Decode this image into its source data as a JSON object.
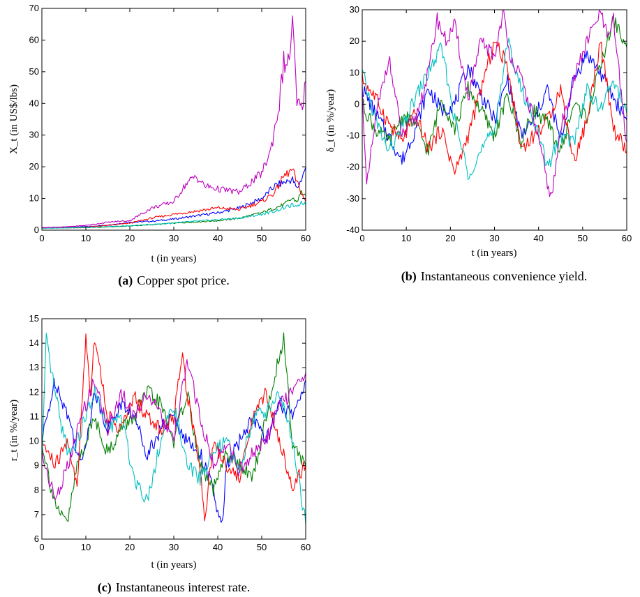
{
  "colors": {
    "blue": "#0000ff",
    "green": "#007f00",
    "red": "#ff0000",
    "cyan": "#00bfbf",
    "magenta": "#bf00bf"
  },
  "chart_data": [
    {
      "id": "a",
      "type": "line",
      "caption_tag": "(a)",
      "caption_text": "Copper spot price.",
      "xlabel": "t (in years)",
      "ylabel": "X_t (in US$/lbs)",
      "xlim": [
        0,
        60
      ],
      "ylim": [
        0,
        70
      ],
      "xticks": [
        0,
        10,
        20,
        30,
        40,
        50,
        60
      ],
      "yticks": [
        0,
        10,
        20,
        30,
        40,
        50,
        60,
        70
      ],
      "grid": false,
      "series": [
        {
          "color": "blue",
          "x": [
            0,
            5,
            10,
            15,
            20,
            25,
            30,
            35,
            40,
            45,
            50,
            53,
            55,
            57,
            58,
            59,
            60
          ],
          "y": [
            0.8,
            0.9,
            1.1,
            1.6,
            2.5,
            2.8,
            3.5,
            4.5,
            5.5,
            7,
            10,
            14,
            15,
            16,
            13,
            16,
            20
          ]
        },
        {
          "color": "green",
          "x": [
            0,
            5,
            10,
            15,
            20,
            25,
            30,
            35,
            40,
            45,
            50,
            53,
            55,
            57,
            58,
            59,
            60
          ],
          "y": [
            0.6,
            0.7,
            0.8,
            1.0,
            1.3,
            1.7,
            2.2,
            2.6,
            3.0,
            3.8,
            5.5,
            7,
            8,
            10,
            9,
            12,
            11
          ]
        },
        {
          "color": "red",
          "x": [
            0,
            5,
            10,
            15,
            20,
            25,
            30,
            35,
            40,
            45,
            50,
            53,
            55,
            57,
            58,
            59,
            60
          ],
          "y": [
            0.7,
            0.8,
            1.0,
            1.5,
            2.2,
            3.8,
            5,
            6,
            7,
            6.5,
            9,
            12,
            17,
            19,
            15,
            12,
            9
          ]
        },
        {
          "color": "cyan",
          "x": [
            0,
            5,
            10,
            15,
            20,
            25,
            30,
            35,
            40,
            45,
            50,
            53,
            55,
            57,
            58,
            59,
            60
          ],
          "y": [
            0.6,
            0.7,
            0.9,
            1.1,
            1.4,
            1.8,
            2.3,
            2.8,
            3.3,
            3.8,
            5,
            6,
            7,
            8,
            7,
            9,
            8
          ]
        },
        {
          "color": "magenta",
          "x": [
            0,
            5,
            10,
            15,
            20,
            25,
            30,
            33,
            35,
            37,
            40,
            45,
            50,
            52,
            54,
            55,
            56,
            57,
            58,
            59,
            60
          ],
          "y": [
            0.8,
            1.0,
            1.5,
            2.5,
            3,
            7,
            9,
            15,
            17,
            14,
            13,
            12,
            18,
            25,
            40,
            53,
            52,
            65,
            40,
            38,
            47
          ]
        }
      ]
    },
    {
      "id": "b",
      "type": "line",
      "caption_tag": "(b)",
      "caption_text": "Instantaneous convenience yield.",
      "xlabel": "t (in years)",
      "ylabel": "δ_t (in %/year)",
      "xlim": [
        0,
        60
      ],
      "ylim": [
        -40,
        30
      ],
      "xticks": [
        0,
        10,
        20,
        30,
        40,
        50,
        60
      ],
      "yticks": [
        -40,
        -30,
        -20,
        -10,
        0,
        10,
        20,
        30
      ],
      "grid": false,
      "series": [
        {
          "color": "blue",
          "x": [
            0,
            3,
            6,
            9,
            12,
            15,
            18,
            21,
            24,
            27,
            30,
            33,
            36,
            39,
            42,
            45,
            48,
            51,
            54,
            57,
            60
          ],
          "y": [
            5,
            -3,
            -10,
            -18,
            -8,
            5,
            -2,
            0,
            12,
            3,
            -5,
            8,
            -10,
            -5,
            5,
            -12,
            8,
            16,
            10,
            2,
            -5
          ]
        },
        {
          "color": "green",
          "x": [
            0,
            3,
            6,
            9,
            12,
            15,
            18,
            21,
            24,
            27,
            30,
            33,
            36,
            39,
            42,
            45,
            48,
            51,
            54,
            57,
            60
          ],
          "y": [
            0,
            -8,
            -12,
            -4,
            -6,
            -15,
            2,
            -8,
            5,
            -2,
            -10,
            3,
            -12,
            -2,
            -6,
            -15,
            0,
            -4,
            12,
            27,
            18
          ]
        },
        {
          "color": "red",
          "x": [
            0,
            3,
            6,
            9,
            12,
            15,
            18,
            21,
            24,
            27,
            30,
            33,
            36,
            39,
            42,
            45,
            48,
            51,
            54,
            57,
            60
          ],
          "y": [
            8,
            2,
            -6,
            -12,
            -3,
            -14,
            -8,
            -22,
            -10,
            5,
            20,
            12,
            -14,
            -10,
            -5,
            5,
            -18,
            -5,
            20,
            -8,
            -15
          ]
        },
        {
          "color": "cyan",
          "x": [
            0,
            3,
            6,
            9,
            12,
            15,
            18,
            21,
            24,
            27,
            30,
            33,
            36,
            39,
            42,
            45,
            48,
            51,
            54,
            57,
            60
          ],
          "y": [
            10,
            -5,
            -15,
            -8,
            2,
            10,
            18,
            -5,
            -22,
            -15,
            -8,
            20,
            5,
            -5,
            -20,
            -10,
            -12,
            5,
            -2,
            8,
            -3
          ]
        },
        {
          "color": "magenta",
          "x": [
            0,
            1,
            3,
            6,
            9,
            12,
            15,
            17,
            19,
            21,
            24,
            27,
            30,
            32,
            33,
            36,
            39,
            42,
            43,
            45,
            48,
            51,
            54,
            56,
            57,
            59,
            60
          ],
          "y": [
            5,
            -27,
            -5,
            15,
            -10,
            -5,
            10,
            27,
            20,
            25,
            2,
            20,
            15,
            30,
            18,
            8,
            -5,
            -25,
            -30,
            -8,
            8,
            20,
            29,
            20,
            27,
            0,
            -12
          ]
        }
      ]
    },
    {
      "id": "c",
      "type": "line",
      "caption_tag": "(c)",
      "caption_text": "Instantaneous interest rate.",
      "xlabel": "t (in years)",
      "ylabel": "r_t (in %/year)",
      "xlim": [
        0,
        60
      ],
      "ylim": [
        6,
        15
      ],
      "xticks": [
        0,
        10,
        20,
        30,
        40,
        50,
        60
      ],
      "yticks": [
        6,
        7,
        8,
        9,
        10,
        11,
        12,
        13,
        14,
        15
      ],
      "grid": false,
      "series": [
        {
          "color": "blue",
          "x": [
            0,
            3,
            6,
            9,
            12,
            15,
            18,
            21,
            24,
            27,
            30,
            33,
            36,
            39,
            40,
            41,
            42,
            45,
            48,
            51,
            54,
            57,
            60
          ],
          "y": [
            10,
            12.5,
            11,
            9,
            12,
            10.5,
            11.5,
            11,
            9.5,
            10.5,
            11,
            10,
            9.5,
            8,
            7,
            6.5,
            9,
            10,
            11,
            10,
            11.5,
            11,
            12.5
          ]
        },
        {
          "color": "green",
          "x": [
            0,
            2,
            4,
            6,
            8,
            10,
            12,
            15,
            18,
            21,
            24,
            27,
            30,
            33,
            36,
            39,
            42,
            45,
            48,
            51,
            54,
            55,
            57,
            60
          ],
          "y": [
            10,
            8.2,
            6.9,
            6.8,
            9,
            10,
            11,
            9.5,
            10.5,
            11,
            12,
            11.5,
            10,
            12,
            9,
            8,
            9.5,
            9,
            8.5,
            11,
            13.5,
            14.2,
            10,
            9
          ]
        },
        {
          "color": "red",
          "x": [
            0,
            3,
            6,
            8,
            10,
            11,
            12,
            15,
            18,
            21,
            24,
            27,
            30,
            32,
            33,
            36,
            37,
            39,
            42,
            45,
            48,
            51,
            54,
            57,
            60
          ],
          "y": [
            10,
            9,
            10,
            8,
            14.3,
            12,
            14.3,
            11,
            10.5,
            11.8,
            11,
            10.5,
            11,
            13.5,
            12,
            9,
            6.8,
            10,
            9,
            8.5,
            11,
            12,
            10,
            8.2,
            9
          ]
        },
        {
          "color": "cyan",
          "x": [
            0,
            1,
            2,
            4,
            6,
            8,
            10,
            12,
            15,
            18,
            21,
            24,
            27,
            30,
            33,
            36,
            39,
            42,
            45,
            48,
            51,
            54,
            57,
            60
          ],
          "y": [
            9,
            14.1,
            13,
            11,
            9.5,
            10,
            11,
            12,
            10.5,
            11,
            8.5,
            7.6,
            10,
            11.5,
            9,
            8.5,
            9.5,
            10,
            8.8,
            11,
            11.2,
            12,
            10,
            6.6
          ]
        },
        {
          "color": "magenta",
          "x": [
            0,
            3,
            6,
            9,
            12,
            15,
            18,
            21,
            24,
            27,
            30,
            33,
            36,
            39,
            42,
            45,
            48,
            51,
            54,
            57,
            60
          ],
          "y": [
            9.5,
            7.6,
            9,
            11,
            12.5,
            10.5,
            12,
            11,
            12,
            11,
            10,
            13.3,
            11,
            9,
            10,
            8.8,
            9.5,
            10,
            11.5,
            12,
            12.8
          ]
        }
      ]
    }
  ]
}
